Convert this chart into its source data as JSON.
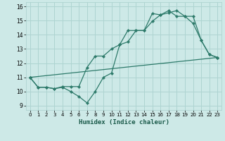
{
  "xlabel": "Humidex (Indice chaleur)",
  "ylabel": "",
  "background_color": "#cde9e7",
  "grid_color": "#aed4d1",
  "line_color": "#2d7a6a",
  "xlim": [
    -0.5,
    23.5
  ],
  "ylim": [
    8.7,
    16.3
  ],
  "yticks": [
    9,
    10,
    11,
    12,
    13,
    14,
    15,
    16
  ],
  "xticks": [
    0,
    1,
    2,
    3,
    4,
    5,
    6,
    7,
    8,
    9,
    10,
    11,
    12,
    13,
    14,
    15,
    16,
    17,
    18,
    19,
    20,
    21,
    22,
    23
  ],
  "series1_x": [
    0,
    1,
    2,
    3,
    4,
    5,
    6,
    7,
    8,
    9,
    10,
    11,
    12,
    13,
    14,
    15,
    16,
    17,
    18,
    19,
    20,
    21,
    22,
    23
  ],
  "series1_y": [
    11.0,
    10.3,
    10.3,
    10.2,
    10.3,
    10.0,
    9.65,
    9.2,
    10.0,
    11.0,
    11.3,
    13.3,
    13.5,
    14.3,
    14.3,
    14.95,
    15.4,
    15.55,
    15.7,
    15.3,
    14.8,
    13.6,
    12.6,
    12.4
  ],
  "series2_x": [
    0,
    1,
    2,
    3,
    4,
    5,
    6,
    7,
    8,
    9,
    10,
    11,
    12,
    13,
    14,
    15,
    16,
    17,
    18,
    19,
    20,
    21,
    22,
    23
  ],
  "series2_y": [
    11.0,
    10.3,
    10.3,
    10.2,
    10.35,
    10.35,
    10.35,
    11.7,
    12.5,
    12.5,
    13.0,
    13.3,
    14.3,
    14.3,
    14.3,
    15.5,
    15.4,
    15.7,
    15.3,
    15.3,
    15.3,
    13.6,
    12.6,
    12.4
  ],
  "series3_x": [
    0,
    23
  ],
  "series3_y": [
    11.0,
    12.4
  ]
}
